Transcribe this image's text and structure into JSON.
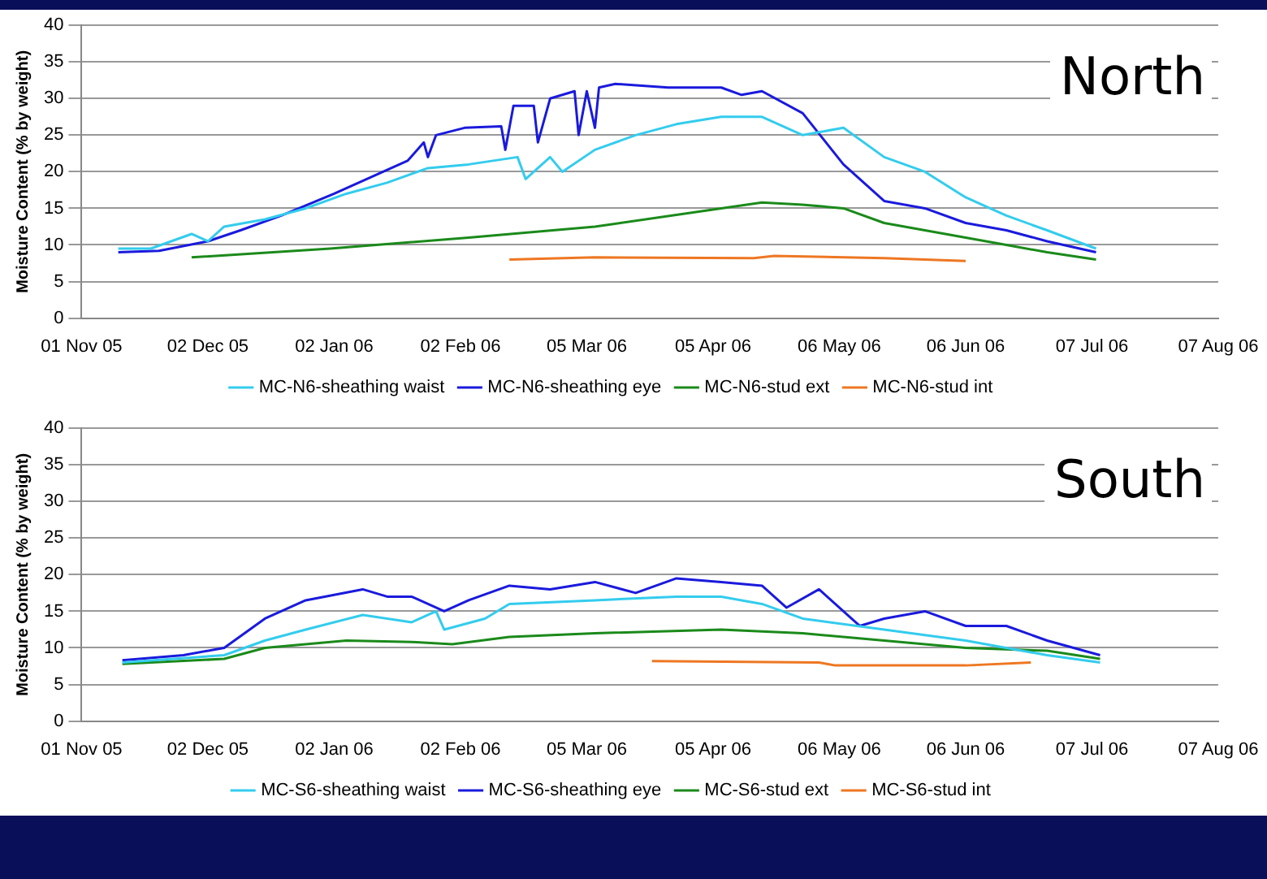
{
  "chart_data": [
    {
      "type": "line",
      "ylabel": "Moisture Content (% by weight)",
      "annotations": [
        "North"
      ],
      "grid": "y",
      "legend": "bottom",
      "marker": "none",
      "line_style": "solid",
      "ylim": [
        0,
        40
      ],
      "yticks": [
        0,
        5,
        10,
        15,
        20,
        25,
        30,
        35,
        40
      ],
      "xlim": [
        "2005-11-01",
        "2006-08-07"
      ],
      "xticks": [
        {
          "value": "2005-11-01",
          "label": "01 Nov 05"
        },
        {
          "value": "2005-12-02",
          "label": "02 Dec 05"
        },
        {
          "value": "2006-01-02",
          "label": "02 Jan 06"
        },
        {
          "value": "2006-02-02",
          "label": "02 Feb 06"
        },
        {
          "value": "2006-03-05",
          "label": "05 Mar 06"
        },
        {
          "value": "2006-04-05",
          "label": "05 Apr 06"
        },
        {
          "value": "2006-05-06",
          "label": "06 May 06"
        },
        {
          "value": "2006-06-06",
          "label": "06 Jun 06"
        },
        {
          "value": "2006-07-07",
          "label": "07 Jul 06"
        },
        {
          "value": "2006-08-07",
          "label": "07 Aug 06"
        }
      ],
      "series": [
        {
          "name": "MC-N6-sheathing waist",
          "color": "#33ccee",
          "x": [
            "2005-11-10",
            "2005-11-18",
            "2005-11-28",
            "2005-12-02",
            "2005-12-06",
            "2005-12-16",
            "2005-12-26",
            "2006-01-05",
            "2006-01-15",
            "2006-01-25",
            "2006-02-04",
            "2006-02-16",
            "2006-02-18",
            "2006-02-24",
            "2006-02-27",
            "2006-03-07",
            "2006-03-17",
            "2006-03-27",
            "2006-04-07",
            "2006-04-17",
            "2006-04-27",
            "2006-05-07",
            "2006-05-17",
            "2006-05-27",
            "2006-06-06",
            "2006-06-16",
            "2006-06-26",
            "2006-07-08"
          ],
          "values": [
            9.5,
            9.5,
            11.5,
            10.5,
            12.5,
            13.5,
            15,
            17,
            18.5,
            20.5,
            21,
            22,
            19,
            22,
            20,
            23,
            25,
            26.5,
            27.5,
            27.5,
            25,
            26,
            22,
            20,
            16.5,
            14,
            12,
            9.5
          ]
        },
        {
          "name": "MC-N6-sheathing eye",
          "color": "#1a1add",
          "x": [
            "2005-11-10",
            "2005-11-20",
            "2005-12-02",
            "2005-12-10",
            "2005-12-20",
            "2006-01-02",
            "2006-01-12",
            "2006-01-20",
            "2006-01-24",
            "2006-01-25",
            "2006-01-27",
            "2006-02-03",
            "2006-02-12",
            "2006-02-13",
            "2006-02-15",
            "2006-02-20",
            "2006-02-21",
            "2006-02-24",
            "2006-03-02",
            "2006-03-03",
            "2006-03-05",
            "2006-03-07",
            "2006-03-08",
            "2006-03-12",
            "2006-03-25",
            "2006-04-07",
            "2006-04-12",
            "2006-04-17",
            "2006-04-27",
            "2006-05-07",
            "2006-05-17",
            "2006-05-27",
            "2006-06-06",
            "2006-06-16",
            "2006-06-26",
            "2006-07-08"
          ],
          "values": [
            9,
            9.2,
            10.5,
            12,
            14,
            17,
            19.5,
            21.5,
            24,
            22,
            25,
            26,
            26.2,
            23,
            29,
            29,
            24,
            30,
            31,
            25,
            31,
            26,
            31.5,
            32,
            31.5,
            31.5,
            30.5,
            31,
            28,
            21,
            16,
            15,
            13,
            12,
            10.5,
            9
          ]
        },
        {
          "name": "MC-N6-stud ext",
          "color": "#1a8a1a",
          "x": [
            "2005-11-28",
            "2006-01-01",
            "2006-02-04",
            "2006-03-07",
            "2006-04-07",
            "2006-04-17",
            "2006-04-27",
            "2006-05-07",
            "2006-05-17",
            "2006-05-27",
            "2006-06-06",
            "2006-06-16",
            "2006-06-26",
            "2006-07-08"
          ],
          "values": [
            8.3,
            9.5,
            11,
            12.5,
            15,
            15.8,
            15.5,
            15,
            13,
            12,
            11,
            10,
            9,
            8
          ]
        },
        {
          "name": "MC-N6-stud int",
          "color": "#ee7722",
          "x": [
            "2006-02-14",
            "2006-03-07",
            "2006-04-15",
            "2006-04-20",
            "2006-05-17",
            "2006-06-06"
          ],
          "values": [
            8,
            8.3,
            8.2,
            8.5,
            8.2,
            7.8
          ]
        }
      ]
    },
    {
      "type": "line",
      "ylabel": "Moisture Content (% by weight)",
      "annotations": [
        "South"
      ],
      "grid": "y",
      "legend": "bottom",
      "marker": "none",
      "line_style": "solid",
      "ylim": [
        0,
        40
      ],
      "yticks": [
        0,
        5,
        10,
        15,
        20,
        25,
        30,
        35,
        40
      ],
      "xlim": [
        "2005-11-01",
        "2006-08-07"
      ],
      "xticks": [
        {
          "value": "2005-11-01",
          "label": "01 Nov 05"
        },
        {
          "value": "2005-12-02",
          "label": "02 Dec 05"
        },
        {
          "value": "2006-01-02",
          "label": "02 Jan 06"
        },
        {
          "value": "2006-02-02",
          "label": "02 Feb 06"
        },
        {
          "value": "2006-03-05",
          "label": "05 Mar 06"
        },
        {
          "value": "2006-04-05",
          "label": "05 Apr 06"
        },
        {
          "value": "2006-05-06",
          "label": "06 May 06"
        },
        {
          "value": "2006-06-06",
          "label": "06 Jun 06"
        },
        {
          "value": "2006-07-07",
          "label": "07 Jul 06"
        },
        {
          "value": "2006-08-07",
          "label": "07 Aug 06"
        }
      ],
      "series": [
        {
          "name": "MC-S6-sheathing waist",
          "color": "#33ccee",
          "x": [
            "2005-11-11",
            "2005-12-06",
            "2005-12-16",
            "2005-12-26",
            "2006-01-09",
            "2006-01-21",
            "2006-01-27",
            "2006-01-29",
            "2006-02-08",
            "2006-02-14",
            "2006-03-07",
            "2006-03-27",
            "2006-04-07",
            "2006-04-17",
            "2006-04-27",
            "2006-05-17",
            "2006-06-06",
            "2006-06-26",
            "2006-07-09"
          ],
          "values": [
            8,
            9,
            11,
            12.5,
            14.5,
            13.5,
            15,
            12.5,
            14,
            16,
            16.5,
            17,
            17,
            16,
            14,
            12.5,
            11,
            9,
            8
          ]
        },
        {
          "name": "MC-S6-sheathing eye",
          "color": "#1a1add",
          "x": [
            "2005-11-11",
            "2005-11-26",
            "2005-12-06",
            "2005-12-16",
            "2005-12-26",
            "2006-01-09",
            "2006-01-15",
            "2006-01-21",
            "2006-01-29",
            "2006-02-04",
            "2006-02-14",
            "2006-02-24",
            "2006-03-07",
            "2006-03-17",
            "2006-03-27",
            "2006-04-07",
            "2006-04-17",
            "2006-04-23",
            "2006-05-01",
            "2006-05-11",
            "2006-05-17",
            "2006-05-27",
            "2006-06-06",
            "2006-06-16",
            "2006-06-26",
            "2006-07-09"
          ],
          "values": [
            8.3,
            9,
            10,
            14,
            16.5,
            18,
            17,
            17,
            15,
            16.5,
            18.5,
            18,
            19,
            17.5,
            19.5,
            19,
            18.5,
            15.5,
            18,
            13,
            14,
            15,
            13,
            13,
            11,
            9
          ]
        },
        {
          "name": "MC-S6-stud ext",
          "color": "#1a8a1a",
          "x": [
            "2005-11-11",
            "2005-12-06",
            "2005-12-16",
            "2006-01-05",
            "2006-01-21",
            "2006-01-31",
            "2006-02-14",
            "2006-03-07",
            "2006-04-07",
            "2006-04-27",
            "2006-05-17",
            "2006-06-06",
            "2006-06-26",
            "2006-07-09"
          ],
          "values": [
            7.8,
            8.5,
            10,
            11,
            10.8,
            10.5,
            11.5,
            12,
            12.5,
            12,
            11,
            10,
            9.6,
            8.5
          ]
        },
        {
          "name": "MC-S6-stud int",
          "color": "#ee7722",
          "x": [
            "2006-03-21",
            "2006-05-01",
            "2006-05-05",
            "2006-06-06",
            "2006-06-22"
          ],
          "values": [
            8.2,
            8,
            7.6,
            7.6,
            8
          ]
        }
      ]
    }
  ]
}
